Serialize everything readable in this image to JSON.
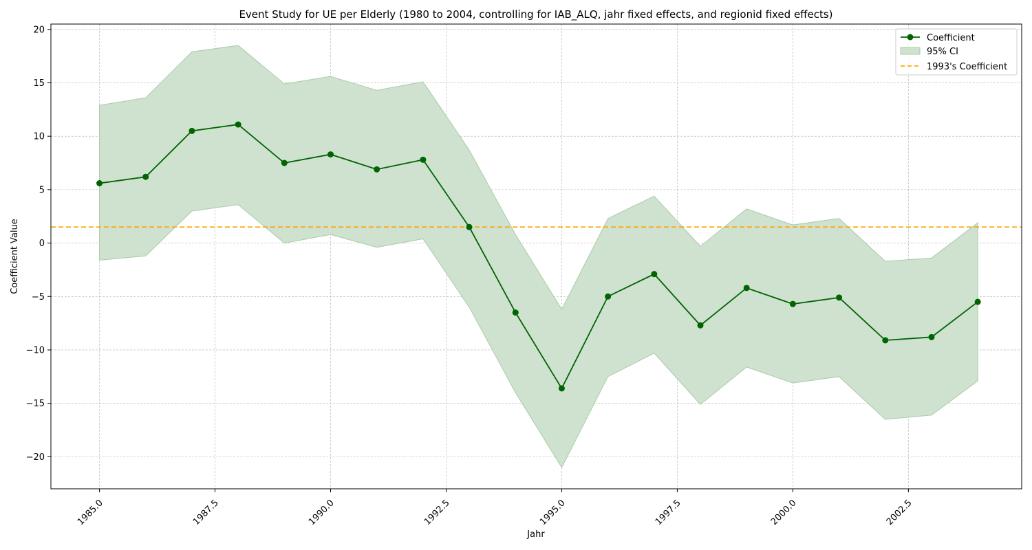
{
  "chart_data": {
    "type": "line",
    "title": "Event Study for UE per Elderly (1980 to 2004, controlling for IAB_ALQ, jahr fixed effects, and regionid fixed effects)",
    "xlabel": "Jahr",
    "ylabel": "Coefficient Value",
    "xlim": [
      1983.95,
      2004.95
    ],
    "ylim": [
      -23,
      20.5
    ],
    "xticks": [
      1985.0,
      1987.5,
      1990.0,
      1992.5,
      1995.0,
      1997.5,
      2000.0,
      2002.5
    ],
    "xtick_labels": [
      "1985.0",
      "1987.5",
      "1990.0",
      "1992.5",
      "1995.0",
      "1997.5",
      "2000.0",
      "2002.5"
    ],
    "yticks": [
      20,
      15,
      10,
      5,
      0,
      -5,
      -10,
      -15,
      -20
    ],
    "ytick_labels": [
      "20",
      "15",
      "10",
      "5",
      "0",
      "−5",
      "−10",
      "−15",
      "−20"
    ],
    "grid": true,
    "legend_position": "top-right",
    "x": [
      1985,
      1986,
      1987,
      1988,
      1989,
      1990,
      1991,
      1992,
      1993,
      1994,
      1995,
      1996,
      1997,
      1998,
      1999,
      2000,
      2001,
      2002,
      2003,
      2004
    ],
    "series": [
      {
        "name": "Coefficient",
        "color": "#006400",
        "values": [
          5.6,
          6.2,
          10.5,
          11.1,
          7.5,
          8.3,
          6.9,
          7.8,
          1.5,
          -6.5,
          -13.6,
          -5.0,
          -2.9,
          -7.7,
          -4.2,
          -5.7,
          -5.1,
          -9.1,
          -8.8,
          -5.5
        ]
      }
    ],
    "ci": {
      "name": "95% CI",
      "color": "#cfe1cf",
      "edge_color": "#a9cba9",
      "lower": [
        -1.6,
        -1.2,
        3.0,
        3.6,
        0.0,
        0.8,
        -0.4,
        0.4,
        -6.0,
        -14.0,
        -21.0,
        -12.5,
        -10.3,
        -15.1,
        -11.6,
        -13.1,
        -12.5,
        -16.5,
        -16.1,
        -12.9
      ],
      "upper": [
        12.9,
        13.6,
        17.9,
        18.5,
        14.9,
        15.6,
        14.3,
        15.1,
        8.7,
        0.8,
        -6.2,
        2.3,
        4.4,
        -0.3,
        3.2,
        1.7,
        2.3,
        -1.7,
        -1.4,
        1.9
      ]
    },
    "reference_line": {
      "name": "1993's Coefficient",
      "color": "#ffa500",
      "value": 1.5
    }
  }
}
